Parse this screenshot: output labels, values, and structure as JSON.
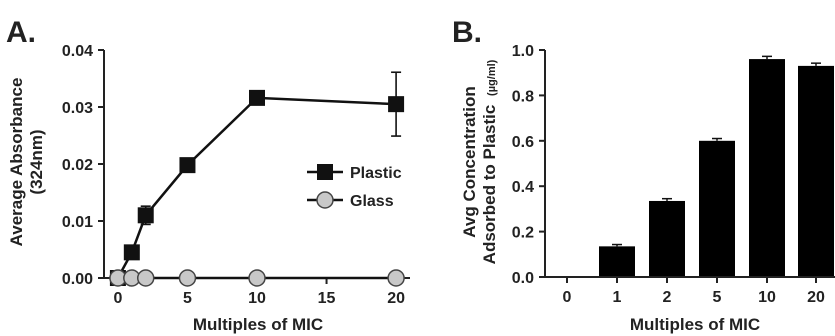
{
  "chart_data": [
    {
      "panel_label": "A.",
      "type": "line",
      "xlabel": "Multiples of MIC",
      "ylabel_lines": [
        "Average Absorbance",
        "(324nm)"
      ],
      "xlim": [
        -1,
        21
      ],
      "ylim": [
        0,
        0.04
      ],
      "x_ticks": [
        0,
        5,
        10,
        15,
        20
      ],
      "y_ticks": [
        "0.00",
        "0.01",
        "0.02",
        "0.03",
        "0.04"
      ],
      "series": [
        {
          "name": "Plastic",
          "marker": "square",
          "color": "#111111",
          "x": [
            0,
            1,
            2,
            5,
            10,
            20
          ],
          "y": [
            0.0,
            0.0045,
            0.011,
            0.0198,
            0.0316,
            0.0305
          ],
          "err": [
            0.0,
            0.0012,
            0.0016,
            0.0008,
            0.0006,
            0.0056
          ]
        },
        {
          "name": "Glass",
          "marker": "circle",
          "color": "#c8c8c8",
          "x": [
            0,
            1,
            2,
            5,
            10,
            20
          ],
          "y": [
            0,
            0,
            0,
            0,
            0,
            0
          ],
          "err": [
            0,
            0,
            0,
            0,
            0,
            0
          ]
        }
      ],
      "legend": "center-right"
    },
    {
      "panel_label": "B.",
      "type": "bar",
      "xlabel": "Multiples of MIC",
      "ylabel_lines": [
        "Avg Concentration",
        "Adsorbed to Plastic"
      ],
      "ylabel_unit": "(µg/ml)",
      "categories": [
        "0",
        "1",
        "2",
        "5",
        "10",
        "20"
      ],
      "values": [
        0.0,
        0.135,
        0.335,
        0.6,
        0.96,
        0.93
      ],
      "err": [
        0.0,
        0.008,
        0.01,
        0.01,
        0.012,
        0.012
      ],
      "ylim": [
        0,
        1.0
      ],
      "y_ticks": [
        "0.0",
        "0.2",
        "0.4",
        "0.6",
        "0.8",
        "1.0"
      ],
      "bar_color": "#000000"
    }
  ]
}
